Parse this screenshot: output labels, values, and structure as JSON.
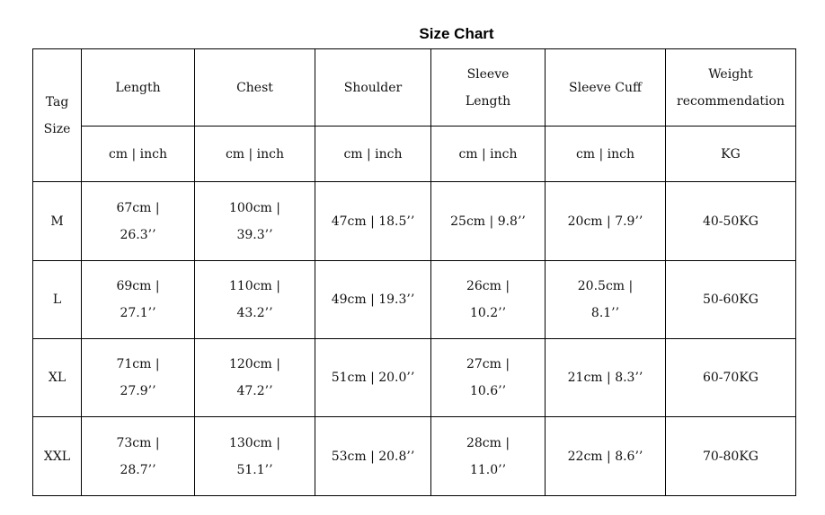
{
  "title": "Size Chart",
  "headers": {
    "tag_size": "Tag\nSize",
    "columns": [
      "Length",
      "Chest",
      "Shoulder",
      "Sleeve\nLength",
      "Sleeve Cuff",
      "Weight\nrecommendation"
    ],
    "units": [
      "cm | inch",
      "cm | inch",
      "cm | inch",
      "cm | inch",
      "cm | inch",
      "KG"
    ]
  },
  "rows": [
    {
      "size": "M",
      "cells": [
        "67cm |\n26.3’’",
        "100cm |\n39.3’’",
        "47cm | 18.5’’",
        "25cm | 9.8’’",
        "20cm | 7.9’’",
        "40-50KG"
      ]
    },
    {
      "size": "L",
      "cells": [
        "69cm |\n27.1’’",
        "110cm |\n43.2’’",
        "49cm | 19.3’’",
        "26cm |\n10.2’’",
        "20.5cm |\n8.1’’",
        "50-60KG"
      ]
    },
    {
      "size": "XL",
      "cells": [
        "71cm |\n27.9’’",
        "120cm |\n47.2’’",
        "51cm | 20.0’’",
        "27cm |\n10.6’’",
        "21cm | 8.3’’",
        "60-70KG"
      ]
    },
    {
      "size": "XXL",
      "cells": [
        "73cm |\n28.7’’",
        "130cm |\n51.1’’",
        "53cm | 20.8’’",
        "28cm |\n11.0’’",
        "22cm | 8.6’’",
        "70-80KG"
      ]
    }
  ]
}
